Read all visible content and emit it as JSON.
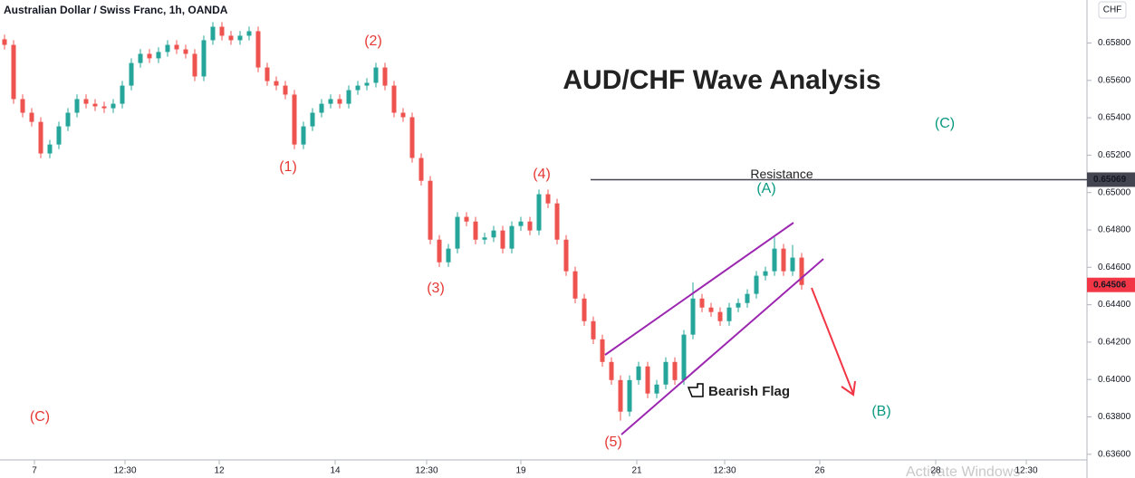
{
  "chart_data": {
    "type": "candlestick",
    "title": "AUD/CHF Wave Analysis",
    "symbol": "Australian Dollar / Swiss Franc, 1h, OANDA",
    "currency": "CHF",
    "up_color": "#26a69a",
    "down_color": "#ef5350",
    "open": [
      0.6582,
      0.6579,
      0.655,
      0.65427,
      0.65378,
      0.65209,
      0.65257,
      0.65354,
      0.65427,
      0.655,
      0.65475,
      0.65461,
      0.65451,
      0.65475,
      0.65572,
      0.65693,
      0.65742,
      0.65718,
      0.65752,
      0.6579,
      0.65766,
      0.65742,
      0.65621,
      0.65815,
      0.65887,
      0.65839,
      0.65815,
      0.65839,
      0.65863,
      0.65669,
      0.65596,
      0.65572,
      0.65524,
      0.65257,
      0.65354,
      0.65427,
      0.65475,
      0.655,
      0.65475,
      0.65548,
      0.65572,
      0.65587,
      0.65669,
      0.65572,
      0.65427,
      0.65403,
      0.65185,
      0.65063,
      0.64748,
      0.64627,
      0.647,
      0.6487,
      0.64845,
      0.64748,
      0.6476,
      0.64797,
      0.647,
      0.64821,
      0.64845,
      0.64797,
      0.64991,
      0.64942,
      0.64748,
      0.64579,
      0.64433,
      0.64312,
      0.64215,
      0.64094,
      0.63997,
      0.63828,
      0.63997,
      0.6407,
      0.63925,
      0.63973,
      0.64094,
      0.63997,
      0.6424,
      0.64433,
      0.64385,
      0.64361,
      0.64312,
      0.64385,
      0.64409,
      0.64458,
      0.64555,
      0.64579,
      0.647,
      0.64579,
      0.64652
    ],
    "high": [
      0.65845,
      0.65815,
      0.65525,
      0.65452,
      0.65403,
      0.65282,
      0.65379,
      0.65452,
      0.65525,
      0.65525,
      0.655,
      0.65486,
      0.655,
      0.65597,
      0.65718,
      0.65767,
      0.65767,
      0.65777,
      0.65815,
      0.65815,
      0.65791,
      0.65767,
      0.6584,
      0.65912,
      0.65912,
      0.65864,
      0.65864,
      0.65888,
      0.65888,
      0.65694,
      0.65621,
      0.65597,
      0.65549,
      0.65379,
      0.65452,
      0.655,
      0.65525,
      0.65525,
      0.65573,
      0.65597,
      0.65612,
      0.65694,
      0.65694,
      0.65597,
      0.65452,
      0.65428,
      0.6521,
      0.65088,
      0.64773,
      0.64725,
      0.64895,
      0.64895,
      0.6487,
      0.64785,
      0.64822,
      0.64822,
      0.64846,
      0.6487,
      0.6487,
      0.65016,
      0.65016,
      0.64967,
      0.64773,
      0.64604,
      0.64458,
      0.64337,
      0.6424,
      0.64119,
      0.64022,
      0.64022,
      0.64095,
      0.64095,
      0.63998,
      0.64119,
      0.64119,
      0.64265,
      0.6452,
      0.64458,
      0.6441,
      0.64386,
      0.6441,
      0.64434,
      0.64483,
      0.6458,
      0.64604,
      0.6476,
      0.64725,
      0.6472,
      0.64677
    ],
    "low": [
      0.65765,
      0.65475,
      0.65402,
      0.65353,
      0.65184,
      0.65184,
      0.65232,
      0.65329,
      0.65402,
      0.6545,
      0.65436,
      0.65426,
      0.65426,
      0.6545,
      0.65547,
      0.65668,
      0.65693,
      0.65693,
      0.65727,
      0.65741,
      0.65717,
      0.65596,
      0.65596,
      0.6579,
      0.65814,
      0.6579,
      0.6579,
      0.65814,
      0.65644,
      0.65571,
      0.65547,
      0.65499,
      0.65232,
      0.65232,
      0.65329,
      0.65402,
      0.6545,
      0.6545,
      0.6545,
      0.65523,
      0.65547,
      0.65562,
      0.65547,
      0.65402,
      0.65378,
      0.6516,
      0.65038,
      0.64723,
      0.64602,
      0.64602,
      0.64675,
      0.6482,
      0.64723,
      0.64723,
      0.64735,
      0.64675,
      0.64675,
      0.64796,
      0.64772,
      0.64772,
      0.64917,
      0.64723,
      0.64554,
      0.64408,
      0.64287,
      0.6419,
      0.64069,
      0.63972,
      0.6378,
      0.63803,
      0.63972,
      0.639,
      0.639,
      0.63948,
      0.63972,
      0.63972,
      0.64215,
      0.6436,
      0.64336,
      0.64287,
      0.64287,
      0.6436,
      0.64384,
      0.64433,
      0.6453,
      0.64554,
      0.64554,
      0.64554,
      0.64481
    ],
    "close": [
      0.6579,
      0.655,
      0.65427,
      0.65378,
      0.65209,
      0.65257,
      0.65354,
      0.65427,
      0.655,
      0.65475,
      0.65461,
      0.65451,
      0.65475,
      0.65572,
      0.65693,
      0.65742,
      0.65718,
      0.65752,
      0.6579,
      0.65766,
      0.65742,
      0.65621,
      0.65815,
      0.65887,
      0.65839,
      0.65815,
      0.65839,
      0.65863,
      0.65669,
      0.65596,
      0.65572,
      0.65524,
      0.65257,
      0.65354,
      0.65427,
      0.65475,
      0.655,
      0.65475,
      0.65548,
      0.65572,
      0.65587,
      0.65669,
      0.65572,
      0.65427,
      0.65403,
      0.65185,
      0.65063,
      0.64748,
      0.64627,
      0.647,
      0.6487,
      0.64845,
      0.64748,
      0.6476,
      0.64797,
      0.647,
      0.64821,
      0.64845,
      0.64797,
      0.64991,
      0.64942,
      0.64748,
      0.64579,
      0.64433,
      0.64312,
      0.64215,
      0.64094,
      0.63997,
      0.63828,
      0.63997,
      0.6407,
      0.63925,
      0.63973,
      0.64094,
      0.63997,
      0.6424,
      0.64433,
      0.64385,
      0.64361,
      0.64312,
      0.64385,
      0.64409,
      0.64458,
      0.64555,
      0.64579,
      0.647,
      0.64579,
      0.64652,
      0.64506
    ],
    "xlim": [
      0,
      120
    ],
    "xticks": [
      {
        "value": 3.8,
        "label": "7"
      },
      {
        "value": 13.8,
        "label": "12:30"
      },
      {
        "value": 24.2,
        "label": "12"
      },
      {
        "value": 37,
        "label": "14"
      },
      {
        "value": 47.1,
        "label": "12:30"
      },
      {
        "value": 57.5,
        "label": "19"
      },
      {
        "value": 70.3,
        "label": "21"
      },
      {
        "value": 80,
        "label": "12:30"
      },
      {
        "value": 90.5,
        "label": "26"
      },
      {
        "value": 103.3,
        "label": "28"
      },
      {
        "value": 113.3,
        "label": "12:30"
      }
    ],
    "ylim": [
      0.6357,
      0.6603
    ],
    "yticks": [
      {
        "value": 0.636,
        "label": "0.63600"
      },
      {
        "value": 0.638,
        "label": "0.63800"
      },
      {
        "value": 0.64,
        "label": "0.64000"
      },
      {
        "value": 0.642,
        "label": "0.64200"
      },
      {
        "value": 0.644,
        "label": "0.64400"
      },
      {
        "value": 0.646,
        "label": "0.64600"
      },
      {
        "value": 0.648,
        "label": "0.64800"
      },
      {
        "value": 0.65,
        "label": "0.65000"
      },
      {
        "value": 0.652,
        "label": "0.65200"
      },
      {
        "value": 0.654,
        "label": "0.65400"
      },
      {
        "value": 0.656,
        "label": "0.65600"
      },
      {
        "value": 0.658,
        "label": "0.65800"
      }
    ],
    "resistance": {
      "label": "Resistance",
      "value": 0.65069,
      "color": "#434651"
    },
    "last_price": {
      "value": 0.64506,
      "color": "#f23645"
    },
    "annotations": [
      "(1)",
      "(2)",
      "(3)",
      "(4)",
      "(5)",
      "(C)",
      "(A)",
      "(B)",
      "(C)",
      "Bearish Flag"
    ],
    "watermark": "Activate Windows"
  }
}
